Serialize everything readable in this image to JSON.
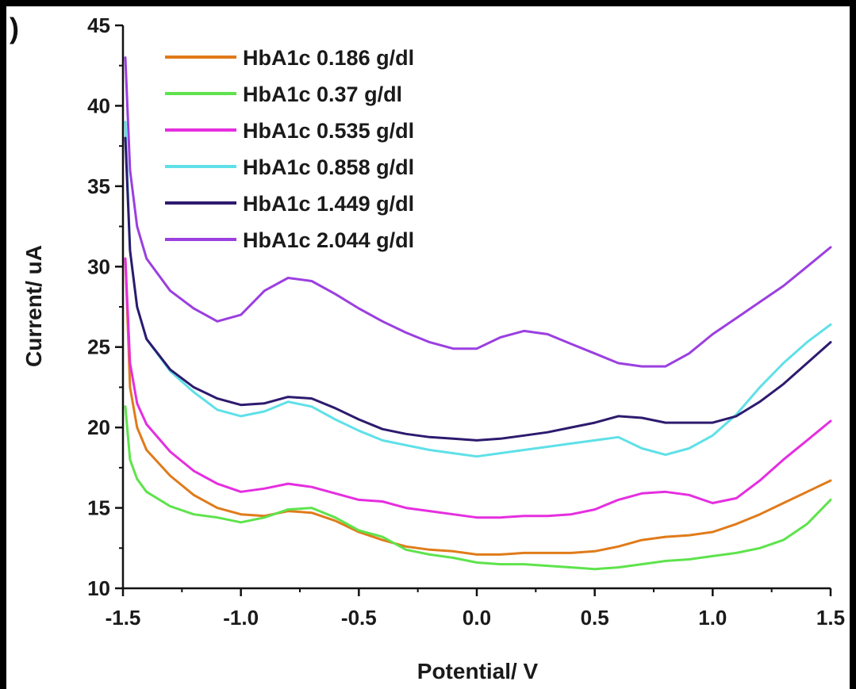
{
  "panel_label": ")",
  "chart_data": {
    "type": "line",
    "title": "",
    "xlabel": "Potential/ V",
    "ylabel": "Current/ uA",
    "xlim": [
      -1.5,
      1.5
    ],
    "ylim": [
      10,
      45
    ],
    "xticks": [
      "-1.5",
      "-1.0",
      "-0.5",
      "0.0",
      "0.5",
      "1.0",
      "1.5"
    ],
    "xtick_values": [
      -1.5,
      -1.0,
      -0.5,
      0.0,
      0.5,
      1.0,
      1.5
    ],
    "yticks": [
      "10",
      "15",
      "20",
      "25",
      "30",
      "35",
      "40",
      "45"
    ],
    "ytick_values": [
      10,
      15,
      20,
      25,
      30,
      35,
      40,
      45
    ],
    "grid": false,
    "legend_position": "top-left",
    "series": [
      {
        "name": "HbA1c 0.186 g/dl",
        "color": "#e07b1a",
        "x": [
          -1.49,
          -1.47,
          -1.44,
          -1.4,
          -1.3,
          -1.2,
          -1.1,
          -1.0,
          -0.9,
          -0.8,
          -0.7,
          -0.6,
          -0.5,
          -0.4,
          -0.3,
          -0.2,
          -0.1,
          0.0,
          0.1,
          0.2,
          0.3,
          0.4,
          0.5,
          0.6,
          0.7,
          0.8,
          0.9,
          1.0,
          1.1,
          1.2,
          1.3,
          1.4,
          1.5
        ],
        "y": [
          30.5,
          22.5,
          20.0,
          18.6,
          17.0,
          15.8,
          15.0,
          14.6,
          14.5,
          14.8,
          14.7,
          14.2,
          13.5,
          13.0,
          12.6,
          12.4,
          12.3,
          12.1,
          12.1,
          12.2,
          12.2,
          12.2,
          12.3,
          12.6,
          13.0,
          13.2,
          13.3,
          13.5,
          14.0,
          14.6,
          15.3,
          16.0,
          16.7
        ]
      },
      {
        "name": "HbA1c 0.37 g/dl",
        "color": "#5ee34c",
        "x": [
          -1.49,
          -1.47,
          -1.44,
          -1.4,
          -1.3,
          -1.2,
          -1.1,
          -1.0,
          -0.9,
          -0.8,
          -0.7,
          -0.6,
          -0.5,
          -0.4,
          -0.3,
          -0.2,
          -0.1,
          0.0,
          0.1,
          0.2,
          0.3,
          0.4,
          0.5,
          0.6,
          0.7,
          0.8,
          0.9,
          1.0,
          1.1,
          1.2,
          1.3,
          1.4,
          1.5
        ],
        "y": [
          21.3,
          18.0,
          16.8,
          16.0,
          15.1,
          14.6,
          14.4,
          14.1,
          14.4,
          14.9,
          15.0,
          14.4,
          13.6,
          13.2,
          12.4,
          12.1,
          11.9,
          11.6,
          11.5,
          11.5,
          11.4,
          11.3,
          11.2,
          11.3,
          11.5,
          11.7,
          11.8,
          12.0,
          12.2,
          12.5,
          13.0,
          14.0,
          15.5
        ]
      },
      {
        "name": "HbA1c 0.535 g/dl",
        "color": "#e52ee0",
        "x": [
          -1.49,
          -1.47,
          -1.44,
          -1.4,
          -1.3,
          -1.2,
          -1.1,
          -1.0,
          -0.9,
          -0.8,
          -0.7,
          -0.6,
          -0.5,
          -0.4,
          -0.3,
          -0.2,
          -0.1,
          0.0,
          0.1,
          0.2,
          0.3,
          0.4,
          0.5,
          0.6,
          0.7,
          0.8,
          0.9,
          1.0,
          1.1,
          1.2,
          1.3,
          1.4,
          1.5
        ],
        "y": [
          30.5,
          24.0,
          21.5,
          20.2,
          18.5,
          17.3,
          16.5,
          16.0,
          16.2,
          16.5,
          16.3,
          15.9,
          15.5,
          15.4,
          15.0,
          14.8,
          14.6,
          14.4,
          14.4,
          14.5,
          14.5,
          14.6,
          14.9,
          15.5,
          15.9,
          16.0,
          15.8,
          15.3,
          15.6,
          16.7,
          18.0,
          19.2,
          20.4
        ]
      },
      {
        "name": "HbA1c 0.858 g/dl",
        "color": "#5fe0e8",
        "x": [
          -1.49,
          -1.47,
          -1.44,
          -1.4,
          -1.3,
          -1.2,
          -1.1,
          -1.0,
          -0.9,
          -0.8,
          -0.7,
          -0.6,
          -0.5,
          -0.4,
          -0.3,
          -0.2,
          -0.1,
          0.0,
          0.1,
          0.2,
          0.3,
          0.4,
          0.5,
          0.6,
          0.7,
          0.8,
          0.9,
          1.0,
          1.1,
          1.2,
          1.3,
          1.4,
          1.5
        ],
        "y": [
          39.0,
          31.0,
          27.5,
          25.5,
          23.5,
          22.2,
          21.1,
          20.7,
          21.0,
          21.6,
          21.3,
          20.5,
          19.8,
          19.2,
          18.9,
          18.6,
          18.4,
          18.2,
          18.4,
          18.6,
          18.8,
          19.0,
          19.2,
          19.4,
          18.7,
          18.3,
          18.7,
          19.5,
          20.8,
          22.5,
          24.0,
          25.3,
          26.4
        ]
      },
      {
        "name": "HbA1c 1.449 g/dl",
        "color": "#2d1a6e",
        "x": [
          -1.49,
          -1.47,
          -1.44,
          -1.4,
          -1.3,
          -1.2,
          -1.1,
          -1.0,
          -0.9,
          -0.8,
          -0.7,
          -0.6,
          -0.5,
          -0.4,
          -0.3,
          -0.2,
          -0.1,
          0.0,
          0.1,
          0.2,
          0.3,
          0.4,
          0.5,
          0.6,
          0.7,
          0.8,
          0.9,
          1.0,
          1.1,
          1.2,
          1.3,
          1.4,
          1.5
        ],
        "y": [
          38.0,
          31.0,
          27.5,
          25.5,
          23.6,
          22.5,
          21.8,
          21.4,
          21.5,
          21.9,
          21.8,
          21.2,
          20.5,
          19.9,
          19.6,
          19.4,
          19.3,
          19.2,
          19.3,
          19.5,
          19.7,
          20.0,
          20.3,
          20.7,
          20.6,
          20.3,
          20.3,
          20.3,
          20.7,
          21.6,
          22.7,
          24.0,
          25.3
        ]
      },
      {
        "name": "HbA1c 2.044 g/dl",
        "color": "#9b3fe0",
        "x": [
          -1.49,
          -1.47,
          -1.44,
          -1.4,
          -1.3,
          -1.2,
          -1.1,
          -1.0,
          -0.9,
          -0.8,
          -0.7,
          -0.6,
          -0.5,
          -0.4,
          -0.3,
          -0.2,
          -0.1,
          0.0,
          0.1,
          0.2,
          0.3,
          0.4,
          0.5,
          0.6,
          0.7,
          0.8,
          0.9,
          1.0,
          1.1,
          1.2,
          1.3,
          1.4,
          1.5
        ],
        "y": [
          43.0,
          36.0,
          32.5,
          30.5,
          28.5,
          27.4,
          26.6,
          27.0,
          28.5,
          29.3,
          29.1,
          28.3,
          27.4,
          26.6,
          25.9,
          25.3,
          24.9,
          24.9,
          25.6,
          26.0,
          25.8,
          25.2,
          24.6,
          24.0,
          23.8,
          23.8,
          24.6,
          25.8,
          26.8,
          27.8,
          28.8,
          30.0,
          31.2
        ]
      }
    ]
  }
}
